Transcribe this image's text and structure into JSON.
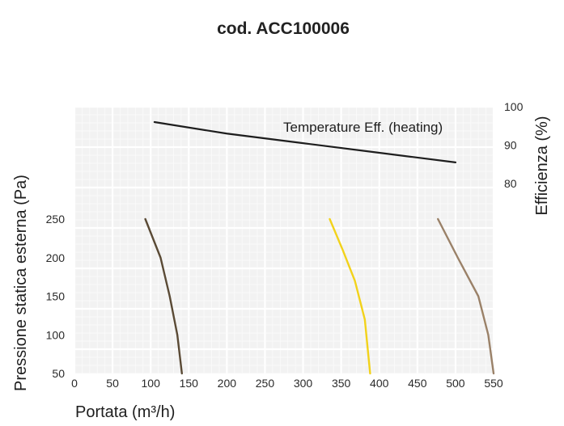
{
  "chart_data": {
    "type": "line",
    "title": "cod. ACC100006",
    "xlabel": "Portata (m³/h)",
    "ylabel": "Pressione statica esterna (Pa)",
    "y2label": "Efficienza (%)",
    "xlim": [
      0,
      550
    ],
    "ylim": [
      50,
      250
    ],
    "y2lim": [
      80,
      100
    ],
    "x_ticks": [
      "0",
      "50",
      "100",
      "150",
      "200",
      "250",
      "300",
      "350",
      "400",
      "450",
      "500",
      "550"
    ],
    "y_ticks": [
      "50",
      "100",
      "150",
      "200",
      "250"
    ],
    "y2_ticks": [
      "80",
      "90",
      "100"
    ],
    "grid": true,
    "annotation": "Temperature Eff. (heating)",
    "series": [
      {
        "axis": "left",
        "color": "#5a4a35",
        "points": [
          [
            93,
            250
          ],
          [
            113,
            200
          ],
          [
            125,
            150
          ],
          [
            135,
            100
          ],
          [
            141,
            50
          ]
        ]
      },
      {
        "axis": "left",
        "color": "#f2d21a",
        "points": [
          [
            335,
            250
          ],
          [
            352,
            210
          ],
          [
            368,
            170
          ],
          [
            381,
            120
          ],
          [
            388,
            50
          ]
        ]
      },
      {
        "axis": "left",
        "color": "#9a8168",
        "points": [
          [
            477,
            250
          ],
          [
            503,
            200
          ],
          [
            530,
            150
          ],
          [
            543,
            100
          ],
          [
            550,
            50
          ]
        ]
      },
      {
        "axis": "right",
        "color": "#1e1e1e",
        "points": [
          [
            105,
            96
          ],
          [
            200,
            93
          ],
          [
            300,
            90.5
          ],
          [
            400,
            88
          ],
          [
            500,
            85.5
          ]
        ]
      }
    ]
  }
}
